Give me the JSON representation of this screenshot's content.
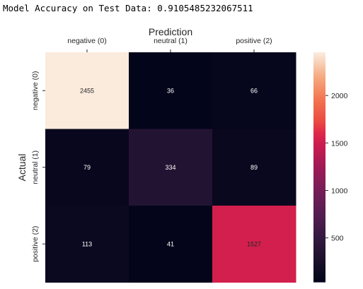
{
  "output": {
    "accuracy_line": "Model Accuracy on Test Data: 0.9105485232067511"
  },
  "chart_data": {
    "type": "heatmap",
    "xlabel": "Prediction",
    "ylabel": "Actual",
    "x_categories": [
      "negative (0)",
      "neutral (1)",
      "positive (2)"
    ],
    "y_categories": [
      "negative (0)",
      "neutral (1)",
      "positive (2)"
    ],
    "values": [
      [
        2455,
        36,
        66
      ],
      [
        79,
        334,
        89
      ],
      [
        113,
        41,
        1527
      ]
    ],
    "colormap": "rocket",
    "vmin": 36,
    "vmax": 2455,
    "colorbar_ticks": [
      500,
      1000,
      1500,
      2000
    ],
    "colorbar_tick_labels": [
      "500",
      "1000",
      "1500",
      "2000"
    ],
    "x_axis_position": "top",
    "annotations": true
  }
}
